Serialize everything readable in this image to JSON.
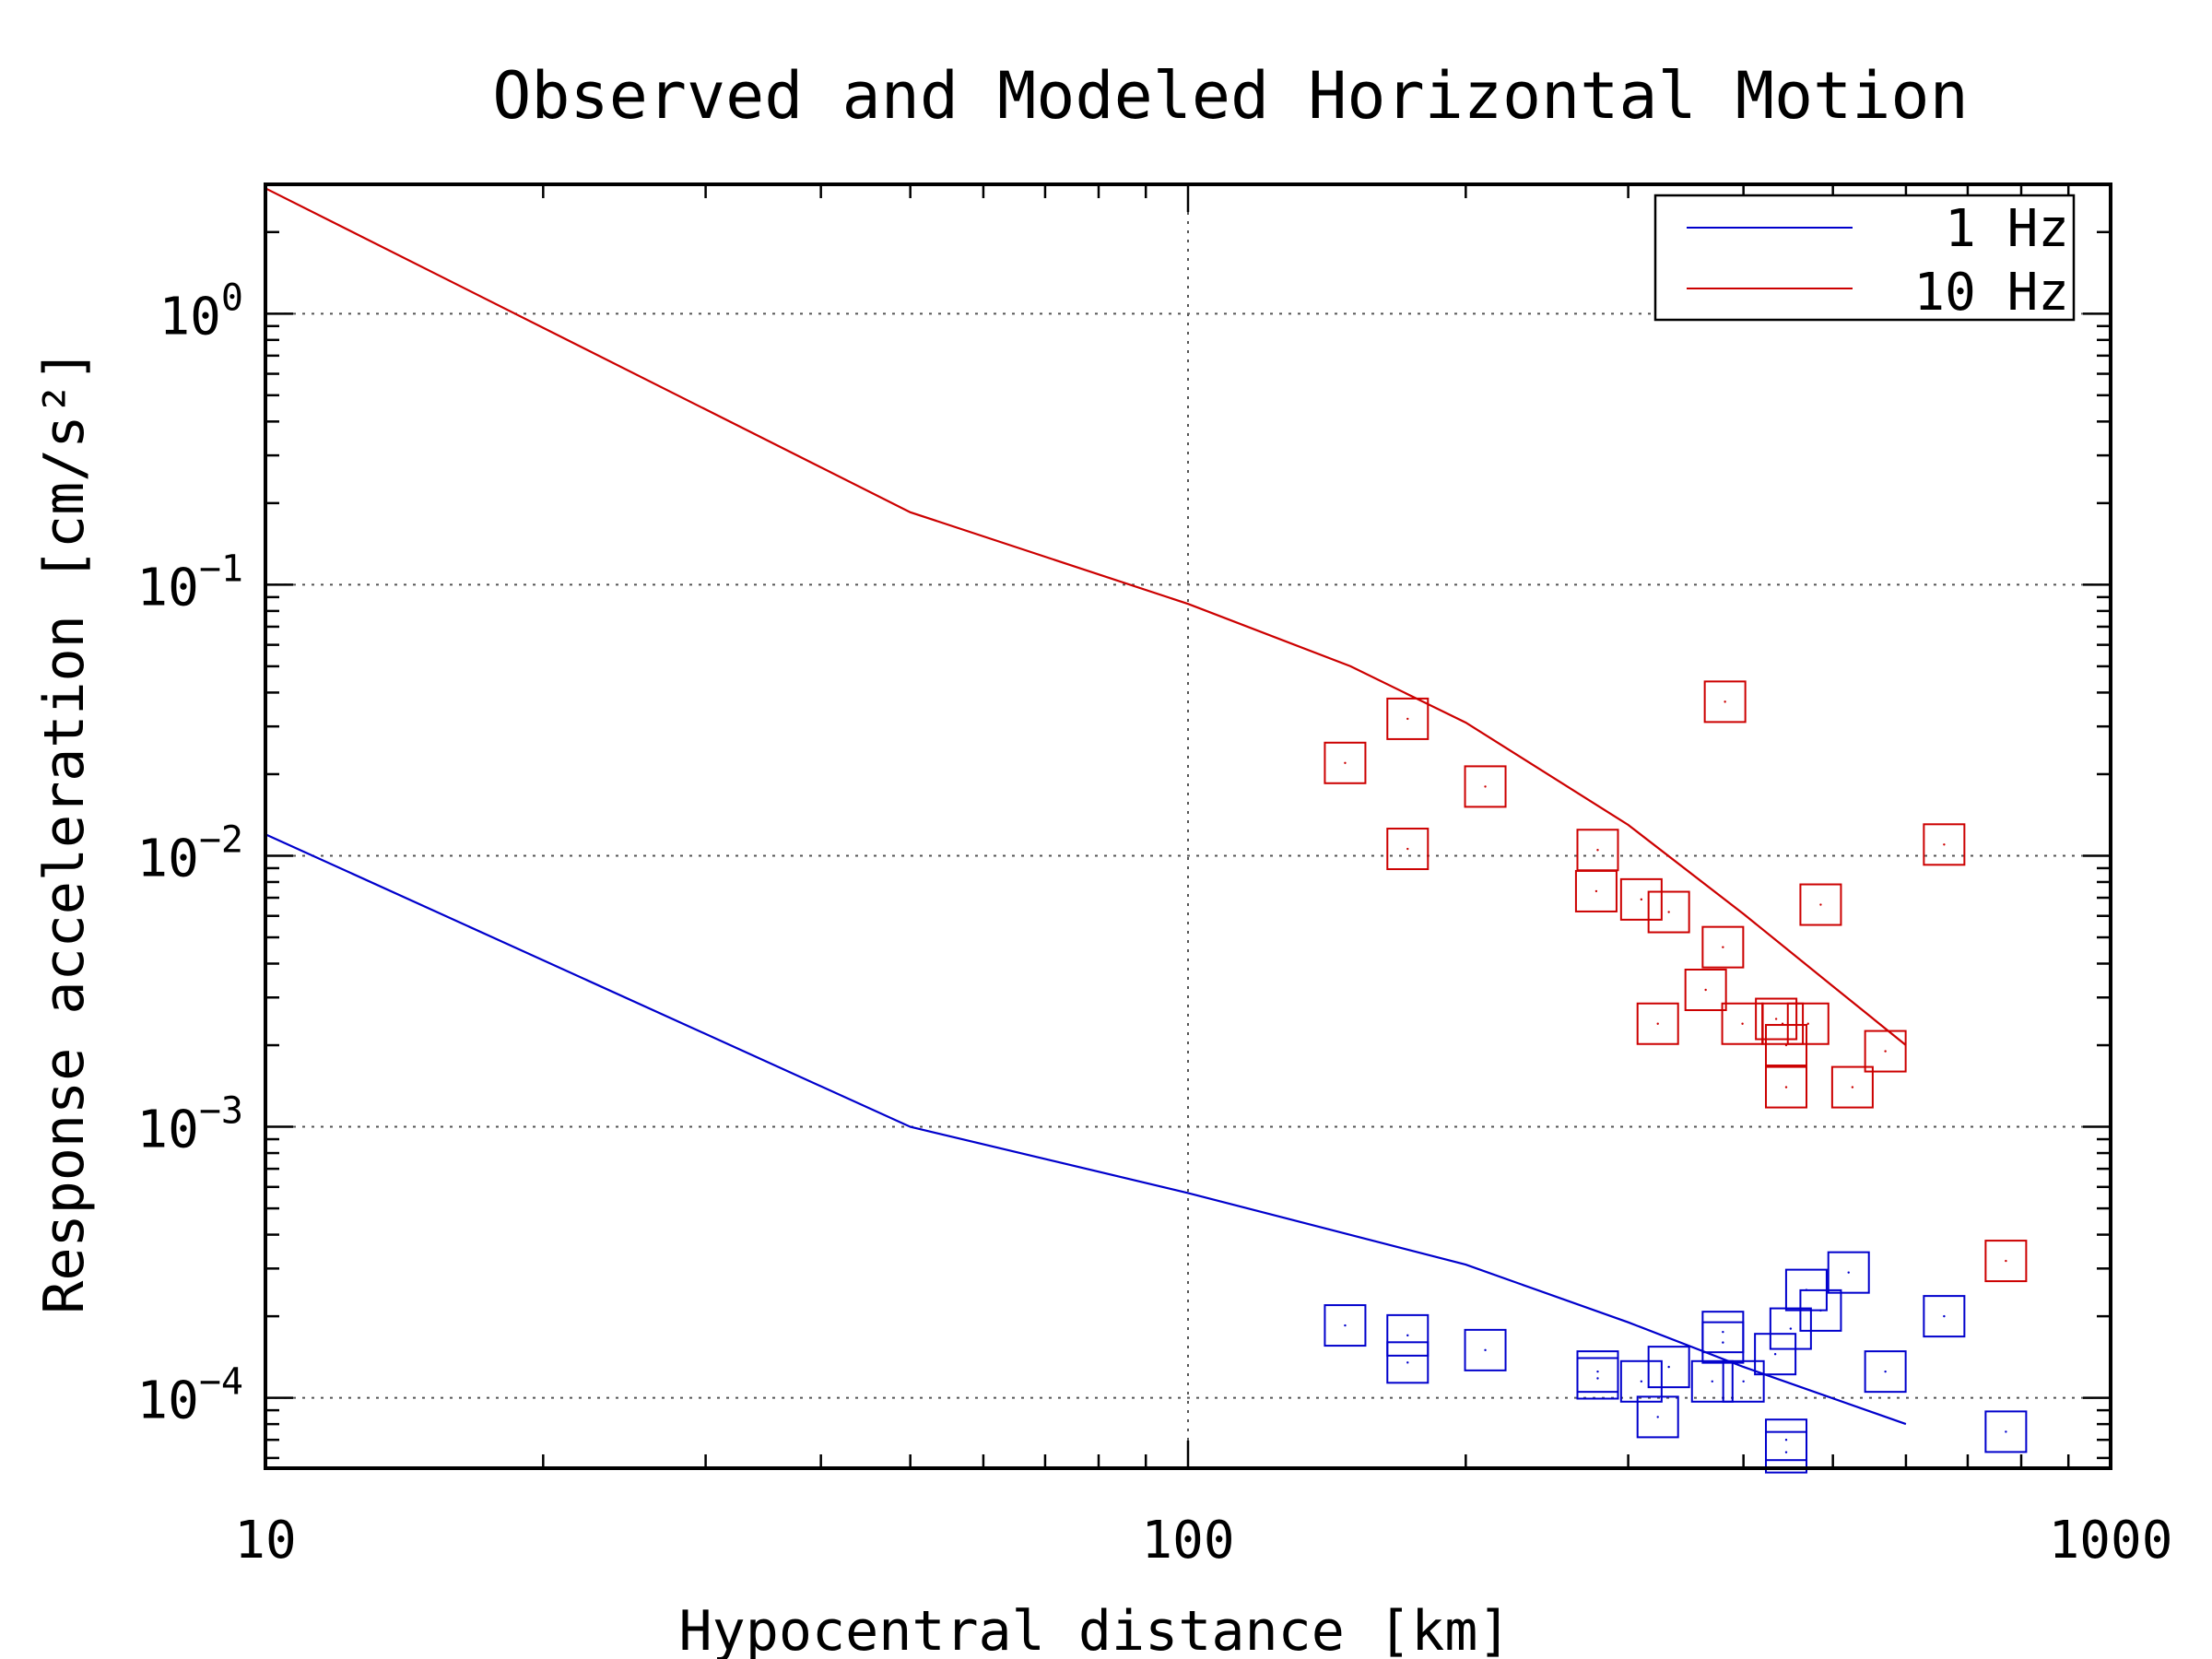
{
  "chart_data": {
    "type": "scatter",
    "title": "Observed and Modeled Horizontal Motion",
    "xlabel": "Hypocentral distance [km]",
    "ylabel": "Response acceleration [cm/s²]",
    "x_scale": "log",
    "y_scale": "log",
    "xlim": [
      10,
      1000
    ],
    "ylim": [
      5.5e-05,
      3.0
    ],
    "x_ticks": [
      {
        "value": 10,
        "label": "10"
      },
      {
        "value": 100,
        "label": "100"
      },
      {
        "value": 1000,
        "label": "1000"
      }
    ],
    "y_ticks": [
      {
        "value": 1,
        "base": "10",
        "exp": "0"
      },
      {
        "value": 0.1,
        "base": "10",
        "exp": "−1"
      },
      {
        "value": 0.01,
        "base": "10",
        "exp": "−2"
      },
      {
        "value": 0.001,
        "base": "10",
        "exp": "−3"
      },
      {
        "value": 0.0001,
        "base": "10",
        "exp": "−4"
      }
    ],
    "grid": true,
    "legend_position": "top-right",
    "series": [
      {
        "name": "1 Hz",
        "kind": "line",
        "color": "#0000cc",
        "x": [
          10,
          50,
          100,
          200,
          300,
          400,
          600
        ],
        "y": [
          0.012,
          0.001,
          0.00057,
          0.00031,
          0.00019,
          0.00013,
          8e-05
        ]
      },
      {
        "name": "10 Hz",
        "kind": "line",
        "color": "#cc0000",
        "x": [
          10,
          50,
          100,
          150,
          200,
          300,
          400,
          500,
          600
        ],
        "y": [
          2.9,
          0.185,
          0.085,
          0.05,
          0.031,
          0.013,
          0.0061,
          0.0033,
          0.002
        ]
      },
      {
        "name": "",
        "kind": "markers",
        "marker": "square",
        "color": "#cc0000",
        "points": [
          [
            148,
            0.022
          ],
          [
            173,
            0.032
          ],
          [
            173,
            0.0106
          ],
          [
            210,
            0.018
          ],
          [
            382,
            0.037
          ],
          [
            278,
            0.0105
          ],
          [
            277,
            0.0074
          ],
          [
            310,
            0.0069
          ],
          [
            332,
            0.0062
          ],
          [
            380,
            0.0046
          ],
          [
            323,
            0.0024
          ],
          [
            364,
            0.0032
          ],
          [
            399,
            0.0024
          ],
          [
            434,
            0.0025
          ],
          [
            441,
            0.0024
          ],
          [
            470,
            0.0024
          ],
          [
            445,
            0.002
          ],
          [
            445,
            0.0014
          ],
          [
            525,
            0.0014
          ],
          [
            570,
            0.0019
          ],
          [
            485,
            0.0066
          ],
          [
            660,
            0.011
          ],
          [
            770,
            0.00032
          ]
        ]
      },
      {
        "name": "",
        "kind": "markers",
        "marker": "square",
        "color": "#0000cc",
        "points": [
          [
            148,
            0.000185
          ],
          [
            173,
            0.00017
          ],
          [
            173,
            0.000135
          ],
          [
            210,
            0.00015
          ],
          [
            278,
            0.000125
          ],
          [
            278,
            0.000118
          ],
          [
            310,
            0.000115
          ],
          [
            332,
            0.00013
          ],
          [
            323,
            8.5e-05
          ],
          [
            370,
            0.000115
          ],
          [
            380,
            0.000175
          ],
          [
            380,
            0.00016
          ],
          [
            400,
            0.000115
          ],
          [
            433,
            0.000145
          ],
          [
            450,
            0.00018
          ],
          [
            468,
            0.00025
          ],
          [
            485,
            0.00021
          ],
          [
            520,
            0.00029
          ],
          [
            570,
            0.000125
          ],
          [
            660,
            0.0002
          ],
          [
            445,
            7e-05
          ],
          [
            445,
            6.3e-05
          ],
          [
            770,
            7.5e-05
          ]
        ]
      }
    ]
  }
}
